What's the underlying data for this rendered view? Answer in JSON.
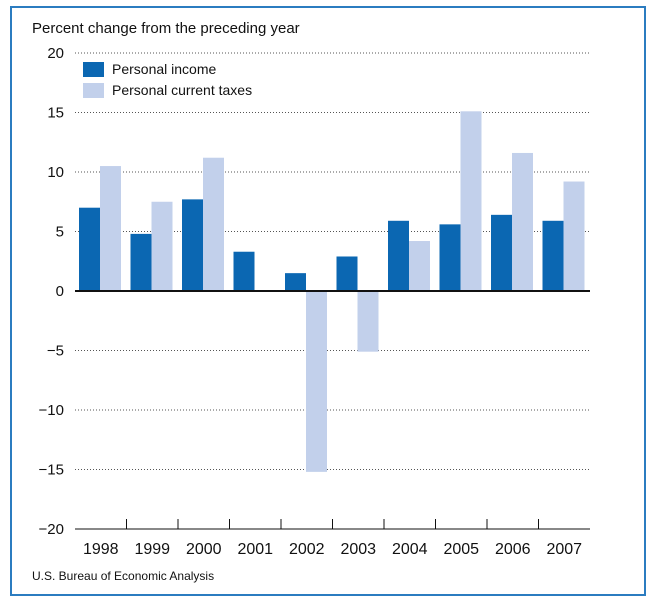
{
  "chart_data": {
    "type": "bar",
    "ylabel": "Percent change from the preceding year",
    "source": "U.S. Bureau of Economic Analysis",
    "categories": [
      "1998",
      "1999",
      "2000",
      "2001",
      "2002",
      "2003",
      "2004",
      "2005",
      "2006",
      "2007"
    ],
    "series": [
      {
        "name": "Personal income",
        "color": "#0b67b2",
        "values": [
          7.0,
          4.8,
          7.7,
          3.3,
          1.5,
          2.9,
          5.9,
          5.6,
          6.4,
          5.9
        ]
      },
      {
        "name": "Personal current taxes",
        "color": "#c2d0eb",
        "values": [
          10.5,
          7.5,
          11.2,
          null,
          -15.2,
          -5.1,
          4.2,
          15.1,
          11.6,
          9.2
        ]
      }
    ],
    "ylim": [
      -20,
      20
    ],
    "yticks": [
      20,
      15,
      10,
      5,
      0,
      -5,
      -10,
      -15,
      -20
    ],
    "ytick_labels": [
      "20",
      "15",
      "10",
      "5",
      "0",
      "−5",
      "−10",
      "−15",
      "−20"
    ],
    "grid": "horizontal dotted",
    "legend": "top-left"
  }
}
